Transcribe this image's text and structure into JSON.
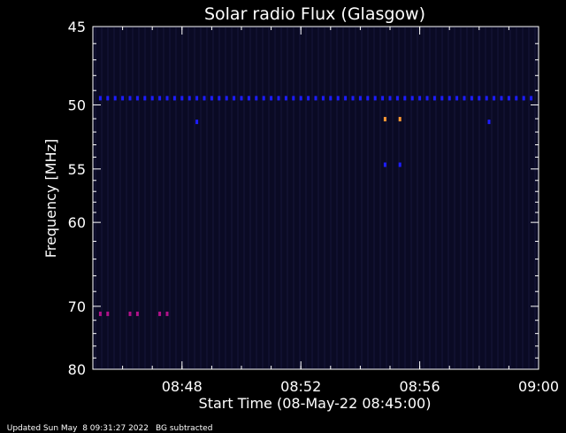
{
  "chart_data": {
    "type": "heatmap",
    "title": "Solar radio Flux (Glasgow)",
    "xlabel": "Start Time (08-May-22 08:45:00)",
    "ylabel": "Frequency [MHz]",
    "x_unit": "time (HH:MM)",
    "xlim": [
      "08:45",
      "09:00"
    ],
    "ylim": [
      45,
      80
    ],
    "y_reversed": true,
    "x_ticks": [
      "08:48",
      "08:52",
      "08:56",
      "09:00"
    ],
    "y_ticks": [
      45,
      50,
      55,
      60,
      70,
      80
    ],
    "background_color": "#0a0a24",
    "axis_color": "#ffffff",
    "emission_rows": [
      {
        "frequency": 49.5,
        "color": "#1d1dff",
        "x_from": "08:45:15",
        "x_to": "08:59:50",
        "step_s": 15
      },
      {
        "frequency": 71,
        "color": "#b0128a",
        "x": [
          "08:45:15",
          "08:45:30",
          "08:46:15",
          "08:46:30",
          "08:47:15",
          "08:47:30"
        ]
      },
      {
        "frequency": 51,
        "color": "#ff9933",
        "x": [
          "08:54:50",
          "08:55:20"
        ]
      },
      {
        "frequency": 51.2,
        "color": "#1d1dff",
        "x": [
          "08:48:30",
          "08:58:20"
        ]
      },
      {
        "frequency": 54.6,
        "color": "#1d1dff",
        "x": [
          "08:54:50",
          "08:55:20"
        ]
      }
    ]
  },
  "footer": {
    "updated": "Updated Sun May  8 09:31:27 2022",
    "note": "BG subtracted"
  }
}
